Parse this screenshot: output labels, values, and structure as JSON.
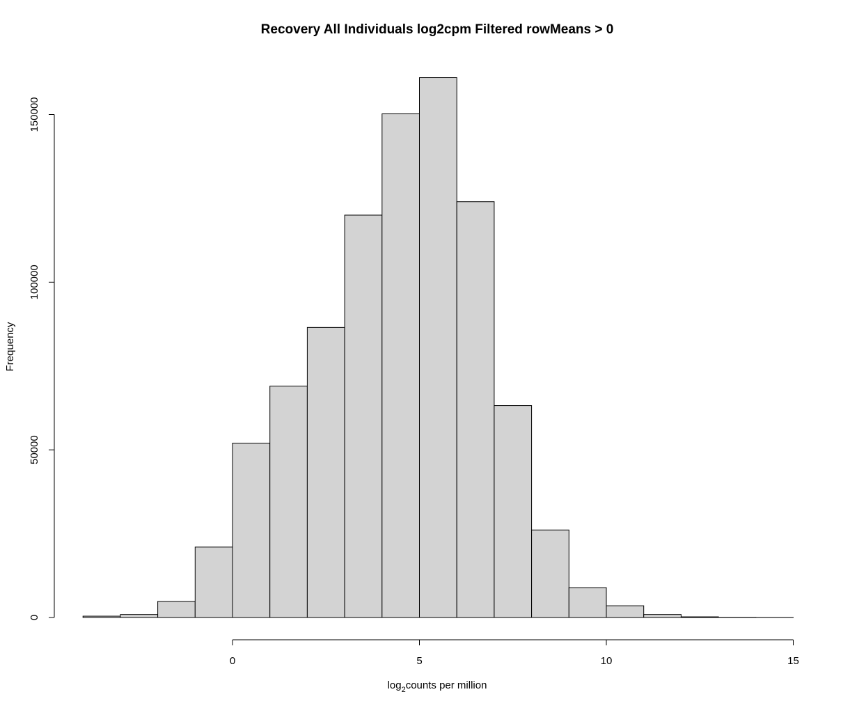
{
  "chart_data": {
    "type": "bar",
    "title": "Recovery All Individuals log2cpm Filtered rowMeans > 0",
    "xlabel": {
      "prefix": "log",
      "sub": "2",
      "suffix": "counts per million"
    },
    "ylabel": "Frequency",
    "x_ticks": [
      0,
      5,
      10,
      15
    ],
    "y_ticks": [
      0,
      50000,
      100000,
      150000
    ],
    "xlim": [
      -4,
      15
    ],
    "ylim": [
      0,
      161000
    ],
    "bins": [
      {
        "x0": -4,
        "x1": -3,
        "count": 400
      },
      {
        "x0": -3,
        "x1": -2,
        "count": 900
      },
      {
        "x0": -2,
        "x1": -1,
        "count": 4800
      },
      {
        "x0": -1,
        "x1": 0,
        "count": 21000
      },
      {
        "x0": 0,
        "x1": 1,
        "count": 52000
      },
      {
        "x0": 1,
        "x1": 2,
        "count": 69000
      },
      {
        "x0": 2,
        "x1": 3,
        "count": 86500
      },
      {
        "x0": 3,
        "x1": 4,
        "count": 120000
      },
      {
        "x0": 4,
        "x1": 5,
        "count": 150200
      },
      {
        "x0": 5,
        "x1": 6,
        "count": 161000
      },
      {
        "x0": 6,
        "x1": 7,
        "count": 124000
      },
      {
        "x0": 7,
        "x1": 8,
        "count": 63200
      },
      {
        "x0": 8,
        "x1": 9,
        "count": 26100
      },
      {
        "x0": 9,
        "x1": 10,
        "count": 8900
      },
      {
        "x0": 10,
        "x1": 11,
        "count": 3500
      },
      {
        "x0": 11,
        "x1": 12,
        "count": 900
      },
      {
        "x0": 12,
        "x1": 13,
        "count": 200
      },
      {
        "x0": 13,
        "x1": 14,
        "count": 50
      },
      {
        "x0": 14,
        "x1": 15,
        "count": 20
      }
    ]
  }
}
